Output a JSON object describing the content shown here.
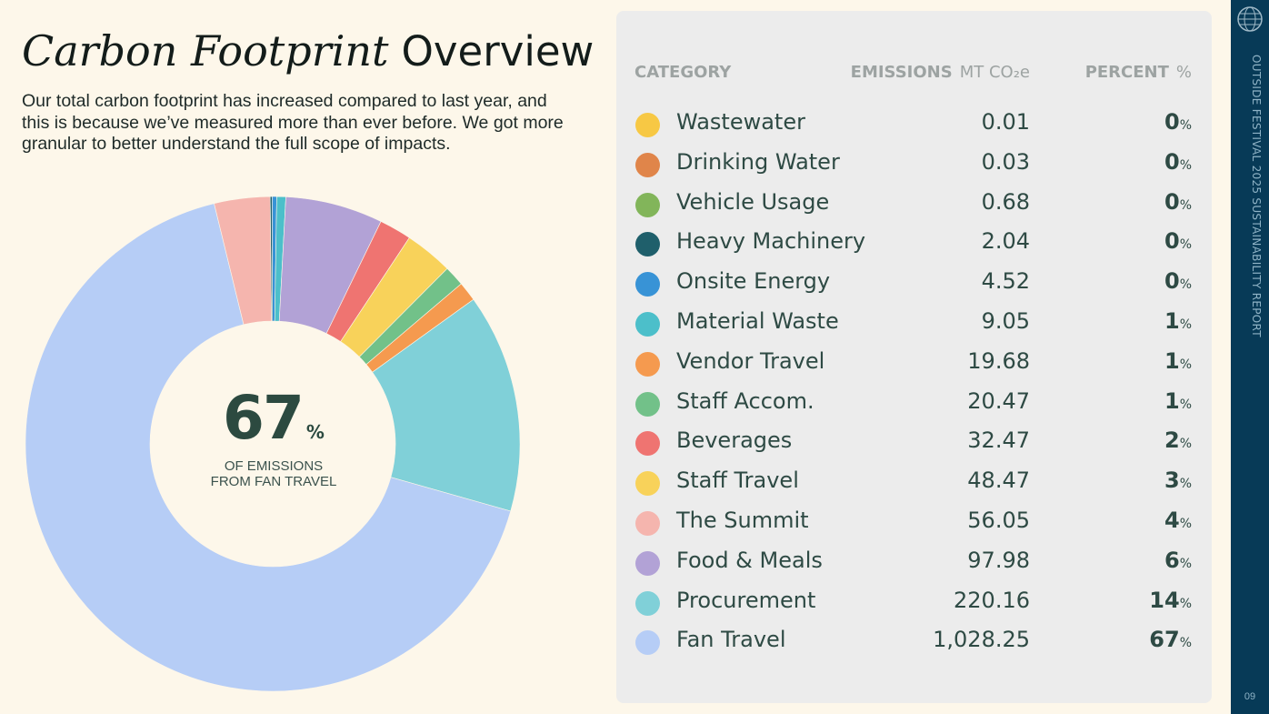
{
  "header": {
    "title_serif": "Carbon Footprint",
    "title_sans": "Overview",
    "intro": "Our total carbon footprint has increased compared to last year, and this is because we’ve measured more than ever before. We got more granular to better understand the full scope of impacts."
  },
  "center": {
    "value": "67",
    "pct_sign": "%",
    "line1": "OF EMISSIONS",
    "line2": "FROM FAN TRAVEL"
  },
  "table": {
    "col_category": "CATEGORY",
    "col_emissions": "EMISSIONS",
    "col_emissions_unit": "MT CO₂e",
    "col_percent": "PERCENT",
    "col_percent_unit": "%"
  },
  "chart_data": {
    "type": "pie",
    "donut": true,
    "categories": [
      "Wastewater",
      "Drinking Water",
      "Vehicle Usage",
      "Heavy Machinery",
      "Onsite Energy",
      "Material Waste",
      "Vendor Travel",
      "Staff Accom.",
      "Beverages",
      "Staff Travel",
      "The Summit",
      "Food & Meals",
      "Procurement",
      "Fan Travel"
    ],
    "values": [
      0.01,
      0.03,
      0.68,
      2.04,
      4.52,
      9.05,
      19.68,
      20.47,
      32.47,
      48.47,
      56.05,
      97.98,
      220.16,
      1028.25
    ],
    "value_labels": [
      "0.01",
      "0.03",
      "0.68",
      "2.04",
      "4.52",
      "9.05",
      "19.68",
      "20.47",
      "32.47",
      "48.47",
      "56.05",
      "97.98",
      "220.16",
      "1,028.25"
    ],
    "percents": [
      0,
      0,
      0,
      0,
      0,
      1,
      1,
      1,
      2,
      3,
      4,
      6,
      14,
      67
    ],
    "colors": [
      "#f7c844",
      "#e0854a",
      "#82b55a",
      "#1f5f6b",
      "#3893d6",
      "#4cbfca",
      "#f59a4f",
      "#72c189",
      "#ef7471",
      "#f8d25a",
      "#f5b5ae",
      "#b2a2d6",
      "#80d0d8",
      "#b6cdf6"
    ],
    "draw_order": [
      "Heavy Machinery",
      "Onsite Energy",
      "Material Waste",
      "Food & Meals",
      "Beverages",
      "Staff Travel",
      "Staff Accom.",
      "Vendor Travel",
      "Procurement",
      "Fan Travel",
      "The Summit"
    ]
  },
  "sidebar": {
    "vertical_text": "OUTSIDE FESTIVAL 2025 SUSTAINABILITY REPORT",
    "page_number": "09"
  }
}
